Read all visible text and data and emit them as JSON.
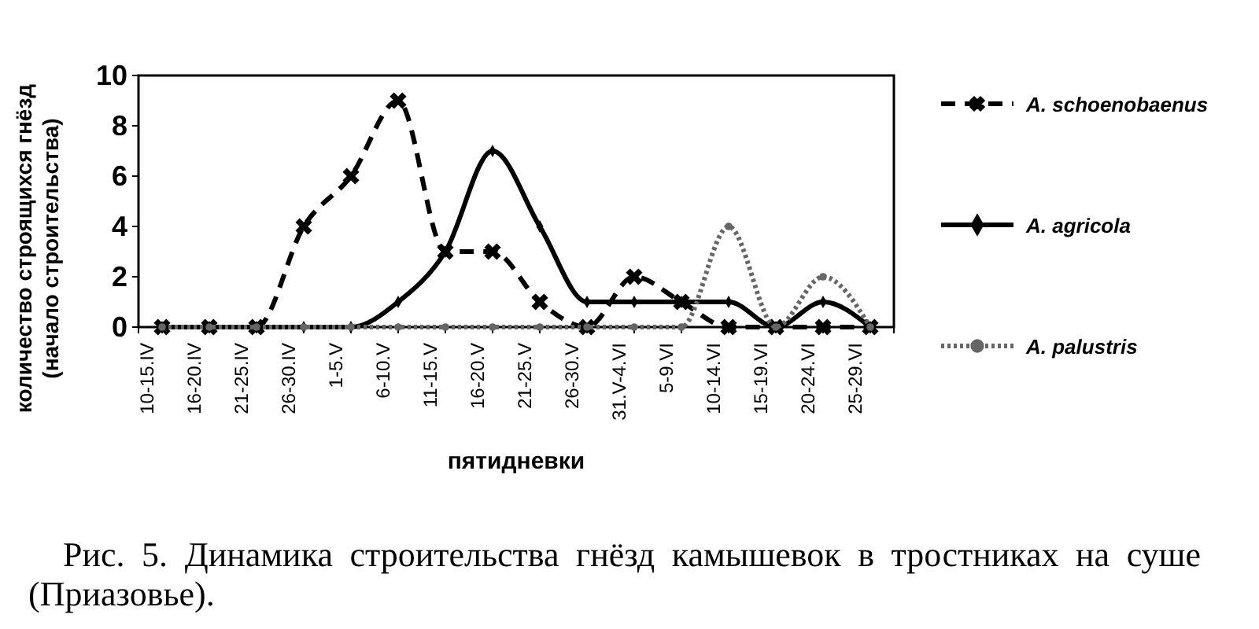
{
  "chart_data": {
    "type": "line",
    "xlabel": "пятидневки",
    "ylabel": "количество строящихся гнёзд\n(начало строительства)",
    "categories": [
      "10-15.IV",
      "16-20.IV",
      "21-25.IV",
      "26-30.IV",
      "1-5.V",
      "6-10.V",
      "11-15.V",
      "16-20.V",
      "21-25.V",
      "26-30.V",
      "31.V-4.VI",
      "5-9.VI",
      "10-14.VI",
      "15-19.VI",
      "20-24.VI",
      "25-29.VI"
    ],
    "series": [
      {
        "name": "A. schoenobaenus",
        "color": "#000000",
        "marker": "cross",
        "line_style": "dashed",
        "values": [
          0,
          0,
          0,
          4,
          6,
          9,
          3,
          3,
          1,
          0,
          2,
          1,
          0,
          0,
          0,
          0
        ]
      },
      {
        "name": "A. agricola",
        "color": "#000000",
        "marker": "diamond",
        "line_style": "solid",
        "values": [
          0,
          0,
          0,
          0,
          0,
          1,
          3,
          7,
          4,
          1,
          1,
          1,
          1,
          0,
          1,
          0
        ]
      },
      {
        "name": "A. palustris",
        "color": "#666666",
        "marker": "circle",
        "line_style": "dotted",
        "values": [
          0,
          0,
          0,
          0,
          0,
          0,
          0,
          0,
          0,
          0,
          0,
          0,
          4,
          0,
          2,
          0
        ]
      }
    ],
    "ylim": [
      0,
      10
    ],
    "yticks": [
      0,
      2,
      4,
      6,
      8,
      10
    ],
    "grid": false,
    "legend": "right",
    "annotations": [
      "Рис. 5. Динамика строительства гнёзд камышевок в тростниках на суше (Приазовье)."
    ]
  }
}
